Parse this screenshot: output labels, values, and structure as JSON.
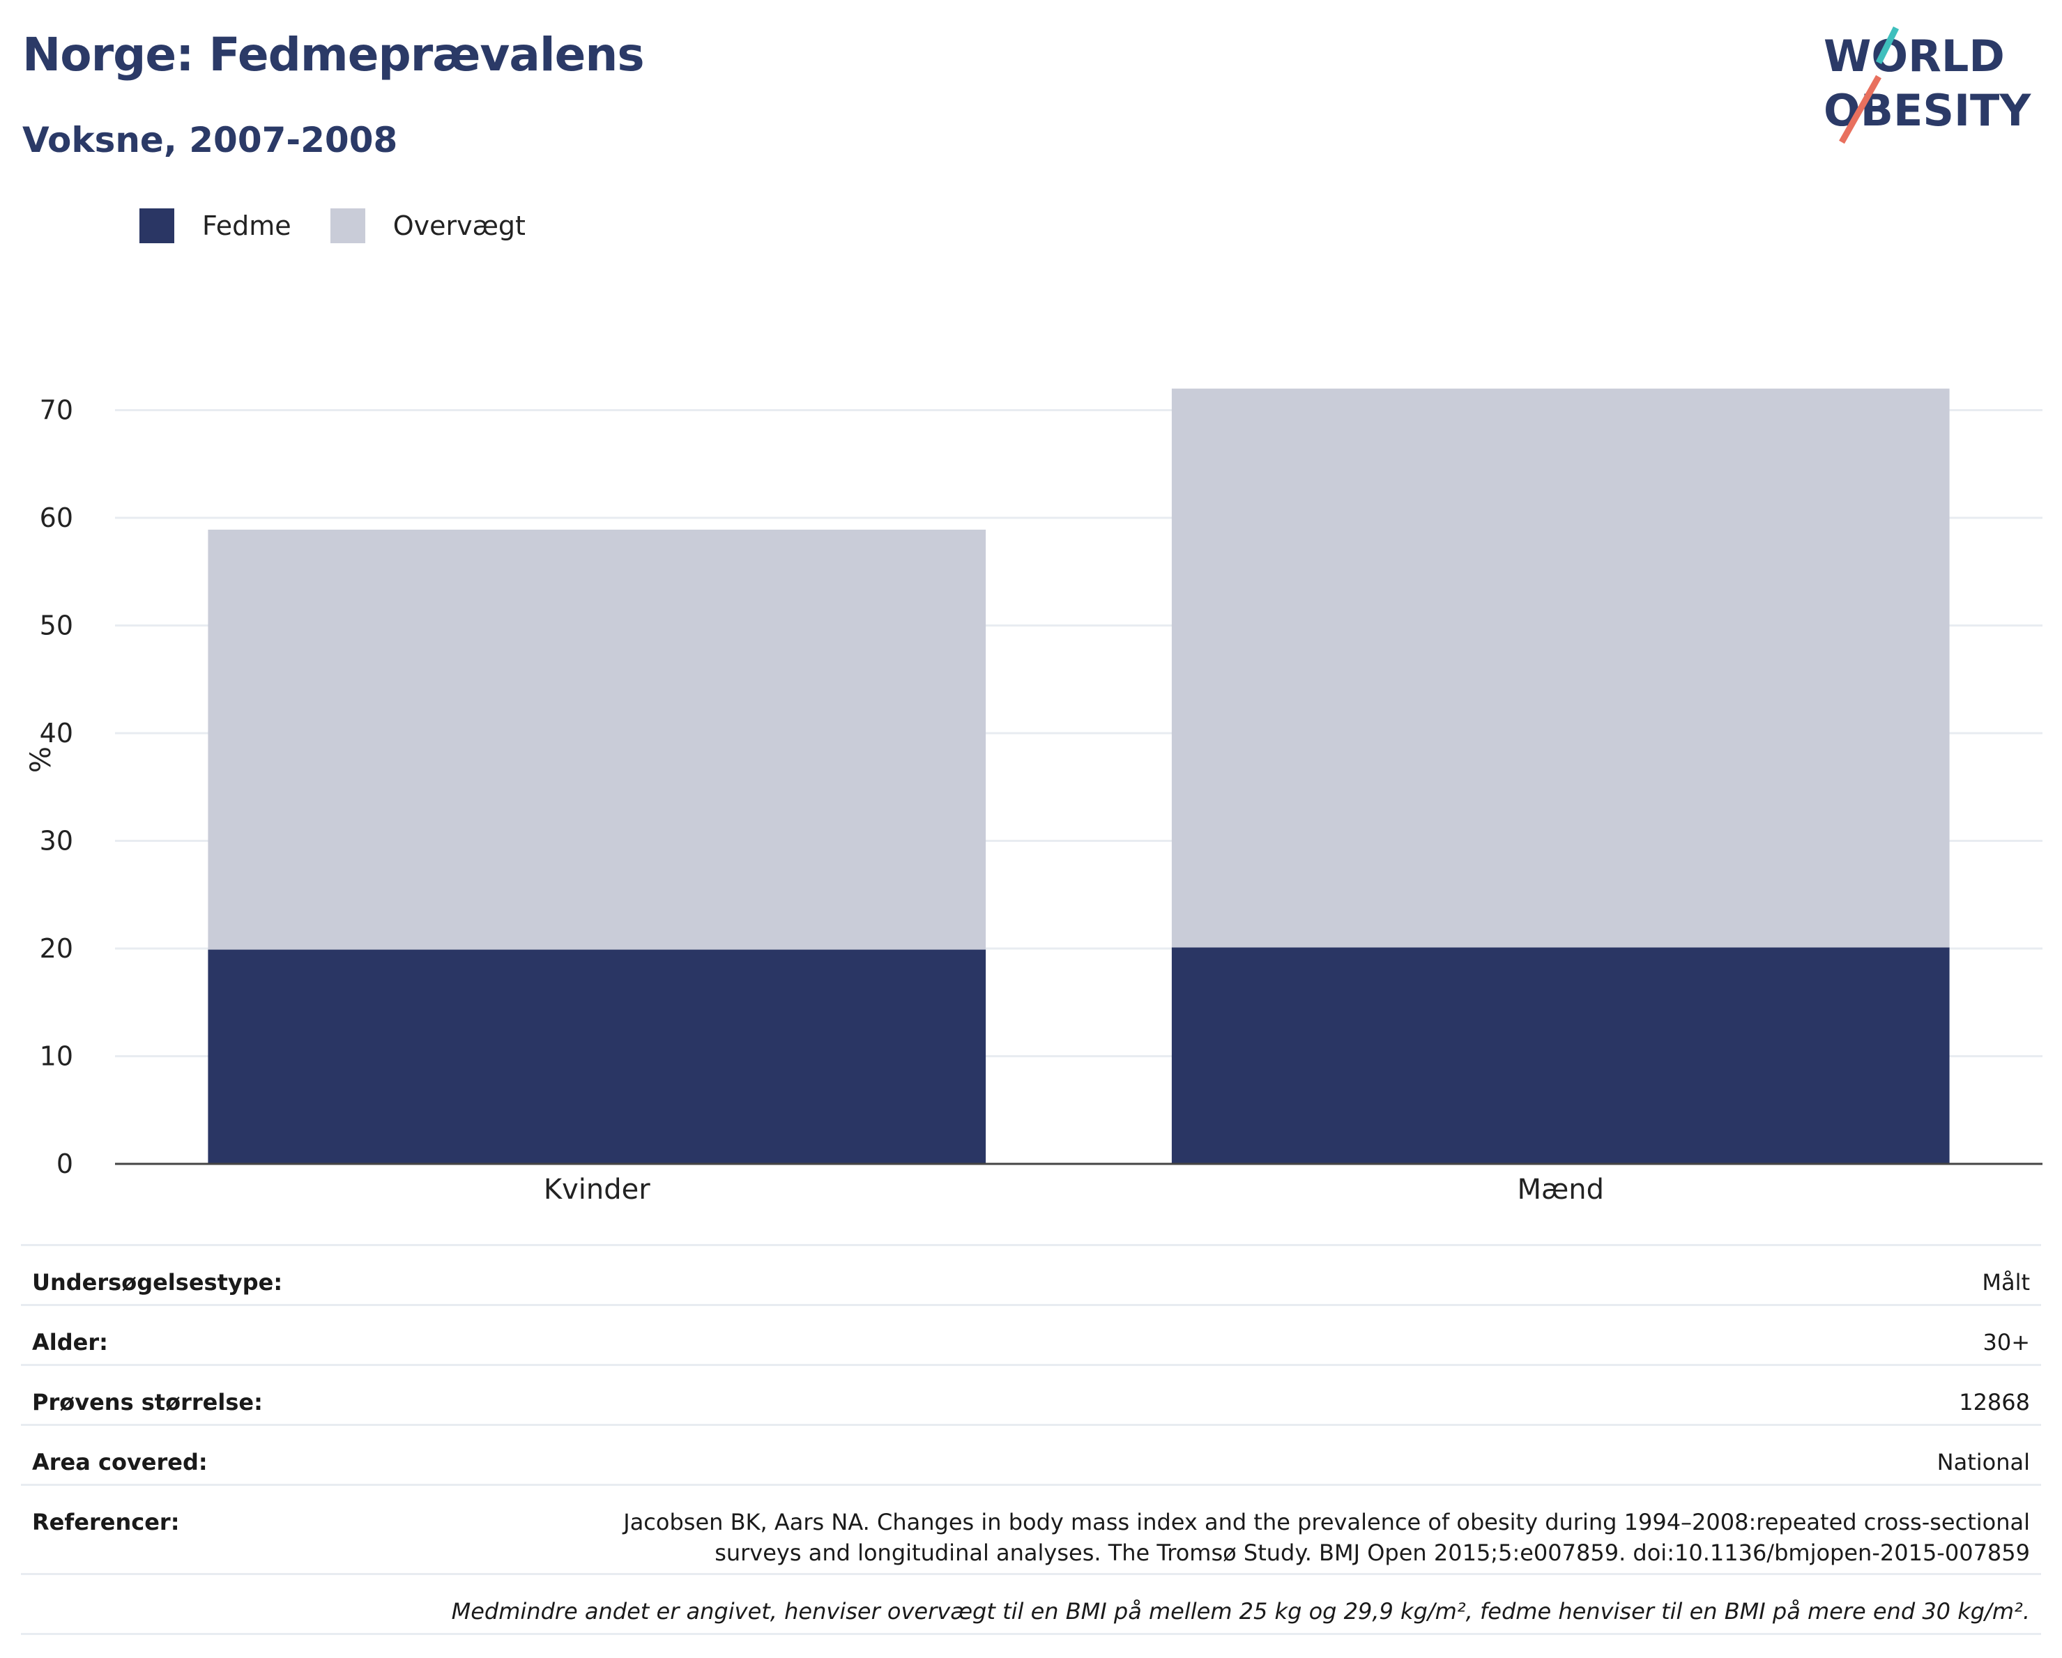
{
  "title": "Norge: Fedmeprævalens",
  "subtitle": "Voksne, 2007-2008",
  "logo": {
    "line1": "WORLD",
    "line2": "OBESITY",
    "colors": [
      "#2b3a67",
      "#3fbfbd",
      "#e8705e"
    ]
  },
  "colors": {
    "fedme": "#2a3664",
    "overvaegt": "#c9ccd8",
    "title": "#2b3a67",
    "grid": "#e8ecf1",
    "axis": "#444444"
  },
  "legend": [
    {
      "label": "Fedme",
      "color": "#2a3664"
    },
    {
      "label": "Overvægt",
      "color": "#c9ccd8"
    }
  ],
  "chart_data": {
    "type": "bar",
    "stacked": true,
    "categories": [
      "Kvinder",
      "Mænd"
    ],
    "series": [
      {
        "name": "Fedme",
        "values": [
          19.9,
          20.1
        ]
      },
      {
        "name": "Overvægt",
        "values": [
          39.0,
          51.9
        ]
      }
    ],
    "ylabel": "%",
    "ylim": [
      0,
      75
    ],
    "yticks": [
      0,
      10,
      20,
      30,
      40,
      50,
      60,
      70
    ],
    "grid": true,
    "legend_position": "top-left"
  },
  "info": {
    "rows": [
      {
        "key": "Undersøgelsestype:",
        "value": "Målt"
      },
      {
        "key": "Alder:",
        "value": "30+"
      },
      {
        "key": "Prøvens størrelse:",
        "value": "12868"
      },
      {
        "key": "Area covered:",
        "value": "National"
      }
    ],
    "references_key": "Referencer:",
    "references_value": "Jacobsen BK, Aars NA. Changes in body mass index and the prevalence of obesity during 1994–2008:repeated cross-sectional surveys and longitudinal analyses. The Tromsø Study. BMJ Open 2015;5:e007859. doi:10.1136/bmjopen-2015-007859",
    "note": "Medmindre andet er angivet, henviser overvægt til en BMI på mellem 25 kg og 29,9 kg/m², fedme henviser til en BMI på mere end 30 kg/m²."
  }
}
